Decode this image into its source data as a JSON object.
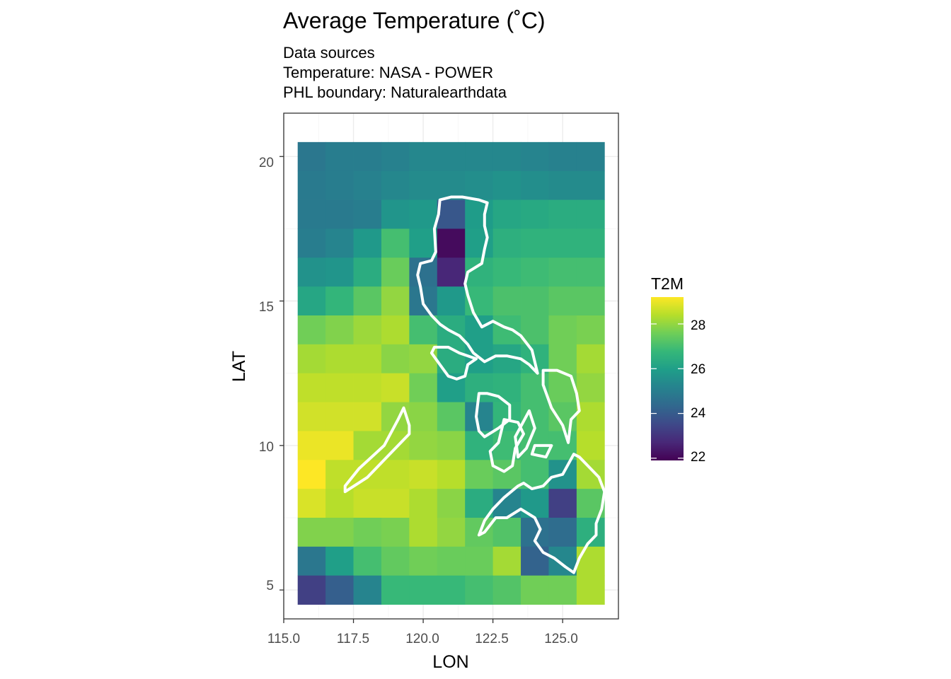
{
  "chart_data": {
    "type": "heatmap",
    "title": "Average Temperature (˚C)",
    "subtitle": [
      "Data sources",
      "Temperature: NASA - POWER",
      "PHL boundary: Naturalearthdata"
    ],
    "xlabel": "LON",
    "ylabel": "LAT",
    "xlim": [
      115,
      127
    ],
    "ylim": [
      4,
      21.5
    ],
    "xticks": [
      115.0,
      117.5,
      120.0,
      122.5,
      125.0
    ],
    "xtick_labels": [
      "115.0",
      "117.5",
      "120.0",
      "122.5",
      "125.0"
    ],
    "yticks": [
      5,
      10,
      15,
      20
    ],
    "ytick_labels": [
      "5",
      "10",
      "15",
      "20"
    ],
    "grid": true,
    "legend": {
      "title": "T2M",
      "placement": "right",
      "range": [
        21.9,
        29.2
      ],
      "ticks": [
        22,
        24,
        26,
        28
      ],
      "tick_labels": [
        "22",
        "24",
        "26",
        "28"
      ],
      "colormap": "viridis"
    },
    "cells": {
      "lon": [
        116,
        117,
        118,
        119,
        120,
        121,
        122,
        123,
        124,
        125,
        126
      ],
      "lat": [
        20,
        19,
        18,
        17,
        16,
        15,
        14,
        13,
        12,
        11,
        10,
        9,
        8,
        7,
        6,
        5
      ],
      "values": [
        [
          24.8,
          25.0,
          25.0,
          25.1,
          25.3,
          25.3,
          25.3,
          25.3,
          25.2,
          25.1,
          25.1
        ],
        [
          24.9,
          25.0,
          25.1,
          25.3,
          25.4,
          25.4,
          25.5,
          25.6,
          25.5,
          25.4,
          25.4
        ],
        [
          24.9,
          24.9,
          25.0,
          25.7,
          25.8,
          23.9,
          25.9,
          26.2,
          26.3,
          26.4,
          26.4
        ],
        [
          25.0,
          25.2,
          25.8,
          27.0,
          26.0,
          22.1,
          26.0,
          26.5,
          26.6,
          26.6,
          26.6
        ],
        [
          25.6,
          25.7,
          26.4,
          27.5,
          24.6,
          22.7,
          26.6,
          26.8,
          26.9,
          27.0,
          27.0
        ],
        [
          26.2,
          26.7,
          27.3,
          28.0,
          24.8,
          25.8,
          26.8,
          27.1,
          27.1,
          27.3,
          27.3
        ],
        [
          27.6,
          27.8,
          28.1,
          28.3,
          27.0,
          26.4,
          26.0,
          26.9,
          27.1,
          27.6,
          27.7
        ],
        [
          28.2,
          28.3,
          28.3,
          27.9,
          28.0,
          26.4,
          26.0,
          26.2,
          26.6,
          27.6,
          28.2
        ],
        [
          28.5,
          28.5,
          28.5,
          28.6,
          27.6,
          26.0,
          26.5,
          26.6,
          27.0,
          27.5,
          28.0
        ],
        [
          28.7,
          28.7,
          28.7,
          28.0,
          27.9,
          27.3,
          25.2,
          26.7,
          27.0,
          27.3,
          28.3
        ],
        [
          29.0,
          29.0,
          28.2,
          28.2,
          28.0,
          27.9,
          26.6,
          26.9,
          27.0,
          27.0,
          28.4
        ],
        [
          29.2,
          28.5,
          28.5,
          28.5,
          28.6,
          28.4,
          27.5,
          27.3,
          27.0,
          25.6,
          28.2
        ],
        [
          28.8,
          28.4,
          28.6,
          28.6,
          28.3,
          27.9,
          26.4,
          25.2,
          25.8,
          23.3,
          27.3
        ],
        [
          27.8,
          27.8,
          27.6,
          27.7,
          28.3,
          28.0,
          27.4,
          27.2,
          24.6,
          24.5,
          26.5
        ],
        [
          24.8,
          26.0,
          27.0,
          27.4,
          27.6,
          27.5,
          27.5,
          28.2,
          24.2,
          25.3,
          28.3
        ],
        [
          23.3,
          24.1,
          25.2,
          26.8,
          26.8,
          26.8,
          27.0,
          27.2,
          27.6,
          27.6,
          28.3
        ]
      ]
    },
    "cell_step": 1,
    "outline_color": "#ffffff",
    "outline_polygons": [
      [
        [
          121.4,
          18.6
        ],
        [
          121.0,
          18.6
        ],
        [
          120.6,
          18.5
        ],
        [
          120.55,
          18.0
        ],
        [
          120.4,
          17.5
        ],
        [
          120.45,
          16.7
        ],
        [
          120.3,
          16.4
        ],
        [
          119.9,
          16.3
        ],
        [
          119.8,
          15.9
        ],
        [
          119.9,
          15.5
        ],
        [
          120.0,
          14.9
        ],
        [
          120.3,
          14.5
        ],
        [
          120.6,
          14.2
        ],
        [
          120.9,
          14.0
        ],
        [
          121.3,
          13.8
        ],
        [
          121.6,
          13.5
        ],
        [
          121.8,
          13.2
        ],
        [
          122.2,
          12.9
        ],
        [
          122.6,
          13.1
        ],
        [
          123.0,
          13.1
        ],
        [
          123.5,
          13.0
        ],
        [
          123.8,
          12.8
        ],
        [
          124.1,
          12.5
        ],
        [
          123.9,
          13.3
        ],
        [
          123.5,
          13.8
        ],
        [
          123.2,
          14.0
        ],
        [
          122.9,
          14.1
        ],
        [
          122.5,
          14.3
        ],
        [
          122.1,
          14.1
        ],
        [
          121.8,
          14.6
        ],
        [
          121.6,
          15.2
        ],
        [
          121.5,
          15.6
        ],
        [
          121.6,
          16.0
        ],
        [
          122.1,
          16.3
        ],
        [
          122.2,
          16.8
        ],
        [
          122.3,
          17.2
        ],
        [
          122.2,
          17.6
        ],
        [
          122.2,
          18.0
        ],
        [
          122.3,
          18.4
        ],
        [
          122.0,
          18.5
        ],
        [
          121.4,
          18.6
        ]
      ],
      [
        [
          121.9,
          13.0
        ],
        [
          121.3,
          13.2
        ],
        [
          120.9,
          13.4
        ],
        [
          120.4,
          13.4
        ],
        [
          120.3,
          13.2
        ],
        [
          120.6,
          12.8
        ],
        [
          120.9,
          12.4
        ],
        [
          121.2,
          12.3
        ],
        [
          121.5,
          12.4
        ],
        [
          121.6,
          12.8
        ],
        [
          121.9,
          13.0
        ]
      ],
      [
        [
          122.0,
          11.8
        ],
        [
          121.9,
          11.0
        ],
        [
          122.0,
          10.5
        ],
        [
          122.2,
          10.3
        ],
        [
          122.7,
          10.6
        ],
        [
          123.1,
          10.9
        ],
        [
          123.1,
          11.4
        ],
        [
          122.7,
          11.7
        ],
        [
          122.3,
          11.8
        ],
        [
          122.0,
          11.8
        ]
      ],
      [
        [
          122.9,
          10.9
        ],
        [
          122.7,
          10.1
        ],
        [
          122.4,
          9.8
        ],
        [
          122.5,
          9.3
        ],
        [
          122.9,
          9.1
        ],
        [
          123.2,
          9.3
        ],
        [
          123.3,
          9.9
        ],
        [
          123.6,
          10.4
        ],
        [
          123.4,
          10.8
        ],
        [
          122.9,
          10.9
        ]
      ],
      [
        [
          123.8,
          11.2
        ],
        [
          123.3,
          10.3
        ],
        [
          123.4,
          9.6
        ],
        [
          123.7,
          9.9
        ],
        [
          124.0,
          10.6
        ],
        [
          123.8,
          11.2
        ]
      ],
      [
        [
          124.3,
          12.6
        ],
        [
          124.3,
          12.1
        ],
        [
          124.6,
          11.3
        ],
        [
          125.0,
          10.7
        ],
        [
          125.2,
          10.1
        ],
        [
          125.3,
          10.9
        ],
        [
          125.6,
          11.2
        ],
        [
          125.5,
          11.8
        ],
        [
          125.3,
          12.4
        ],
        [
          124.8,
          12.6
        ],
        [
          124.3,
          12.6
        ]
      ],
      [
        [
          124.6,
          10.0
        ],
        [
          124.0,
          10.0
        ],
        [
          123.9,
          9.7
        ],
        [
          124.4,
          9.6
        ],
        [
          124.6,
          10.0
        ]
      ],
      [
        [
          125.4,
          9.7
        ],
        [
          125.0,
          9.0
        ],
        [
          124.6,
          8.9
        ],
        [
          124.3,
          8.6
        ],
        [
          123.9,
          8.5
        ],
        [
          123.6,
          8.7
        ],
        [
          123.4,
          8.6
        ],
        [
          122.9,
          8.2
        ],
        [
          122.5,
          7.8
        ],
        [
          122.2,
          7.4
        ],
        [
          122.0,
          6.9
        ],
        [
          122.2,
          7.0
        ],
        [
          122.6,
          7.5
        ],
        [
          123.0,
          7.5
        ],
        [
          123.5,
          7.8
        ],
        [
          124.0,
          7.5
        ],
        [
          124.2,
          7.1
        ],
        [
          124.0,
          6.7
        ],
        [
          124.3,
          6.3
        ],
        [
          124.7,
          6.1
        ],
        [
          125.1,
          5.8
        ],
        [
          125.4,
          5.6
        ],
        [
          125.6,
          6.1
        ],
        [
          125.9,
          6.6
        ],
        [
          126.2,
          6.9
        ],
        [
          126.2,
          7.3
        ],
        [
          126.4,
          7.8
        ],
        [
          126.5,
          8.4
        ],
        [
          126.3,
          8.9
        ],
        [
          126.0,
          9.2
        ],
        [
          125.6,
          9.6
        ],
        [
          125.4,
          9.7
        ]
      ],
      [
        [
          117.2,
          8.4
        ],
        [
          118.0,
          8.9
        ],
        [
          118.9,
          9.8
        ],
        [
          119.5,
          10.4
        ],
        [
          119.5,
          10.7
        ],
        [
          119.3,
          11.3
        ],
        [
          119.1,
          10.9
        ],
        [
          118.6,
          10.0
        ],
        [
          117.7,
          9.2
        ],
        [
          117.2,
          8.6
        ],
        [
          117.2,
          8.4
        ]
      ]
    ]
  }
}
